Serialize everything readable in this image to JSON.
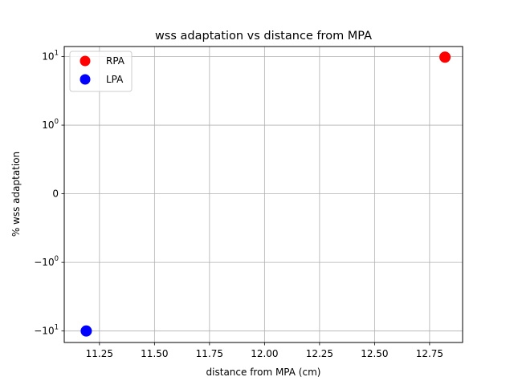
{
  "chart_data": {
    "type": "scatter",
    "title": "wss adaptation vs distance from MPA",
    "xlabel": "distance from MPA (cm)",
    "ylabel": "% wss adaptation",
    "yscale": "symlog",
    "xlim": [
      11.09,
      12.9
    ],
    "ylim": [
      -14.7,
      14.0
    ],
    "xticks": [
      {
        "value": 11.25,
        "label": "11.25"
      },
      {
        "value": 11.5,
        "label": "11.50"
      },
      {
        "value": 11.75,
        "label": "11.75"
      },
      {
        "value": 12.0,
        "label": "12.00"
      },
      {
        "value": 12.25,
        "label": "12.25"
      },
      {
        "value": 12.5,
        "label": "12.50"
      },
      {
        "value": 12.75,
        "label": "12.75"
      }
    ],
    "yticks": [
      {
        "value": 10,
        "base": "10",
        "exp": "1",
        "sign": ""
      },
      {
        "value": 1,
        "base": "10",
        "exp": "0",
        "sign": ""
      },
      {
        "value": 0,
        "base": "0",
        "exp": "",
        "sign": ""
      },
      {
        "value": -1,
        "base": "10",
        "exp": "0",
        "sign": "−"
      },
      {
        "value": -10,
        "base": "10",
        "exp": "1",
        "sign": "−"
      }
    ],
    "grid": true,
    "legend_position": "top-left",
    "series": [
      {
        "name": "RPA",
        "color": "#ff0000",
        "points": [
          {
            "x": 12.82,
            "y": 9.8
          }
        ]
      },
      {
        "name": "LPA",
        "color": "#0000ff",
        "points": [
          {
            "x": 11.19,
            "y": -10.0
          }
        ]
      }
    ]
  }
}
